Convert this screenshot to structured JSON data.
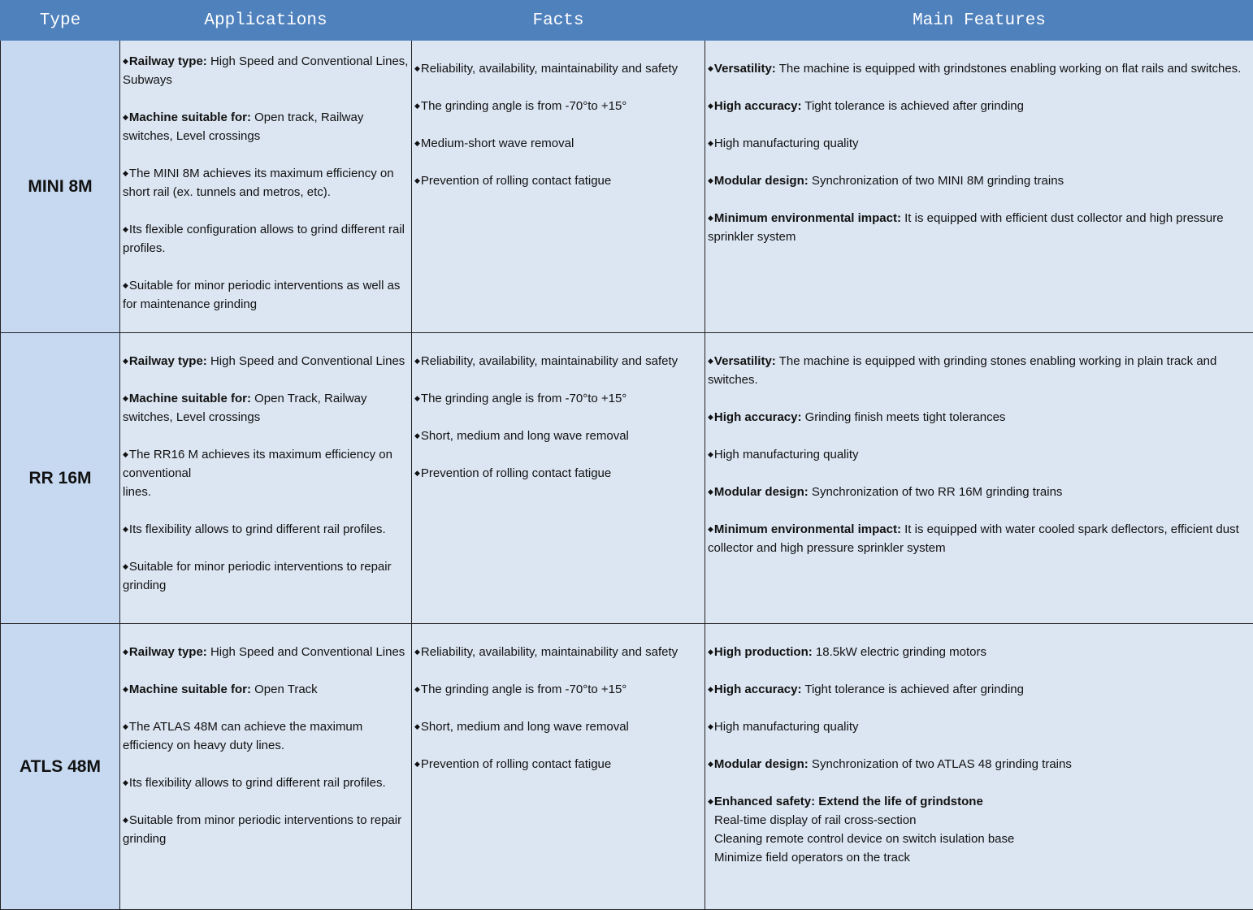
{
  "header": {
    "type": "Type",
    "applications": "Applications",
    "facts": "Facts",
    "features": "Main Features"
  },
  "colors": {
    "header": "#4F81BD",
    "type_column": "#C6D9F1",
    "cell": "#DCE6F2"
  },
  "bullet_icon": "diamond",
  "rows": [
    {
      "type": "MINI 8M",
      "applications": [
        {
          "bold": "Railway type:",
          "text": " High Speed and Conventional Lines, Subways"
        },
        {
          "bold": "Machine suitable for:",
          "text": " Open track,  Railway switches, Level crossings"
        },
        {
          "bold": "",
          "text": "The MINI 8M achieves its maximum efficiency on short rail (ex. tunnels and metros, etc)."
        },
        {
          "bold": "",
          "text": "Its flexible configuration allows to grind different rail profiles."
        },
        {
          "bold": "",
          "text": "Suitable for minor periodic  interventions as well as for maintenance grinding"
        }
      ],
      "facts": [
        {
          "bold": "",
          "text": "Reliability, availability, maintainability and safety"
        },
        {
          "bold": "",
          "text": "The grinding angle is from -70°to +15°"
        },
        {
          "bold": "",
          "text": "Medium-short wave removal"
        },
        {
          "bold": "",
          "text": "Prevention of rolling contact fatigue"
        }
      ],
      "features": [
        {
          "bold": "Versatility:",
          "text": " The machine is equipped with grindstones enabling working on flat rails and switches."
        },
        {
          "bold": "High accuracy:",
          "text": " Tight tolerance is achieved after grinding"
        },
        {
          "bold": "",
          "text": "High manufacturing quality"
        },
        {
          "bold": "Modular design:",
          "text": " Synchronization of two MINI 8M grinding trains"
        },
        {
          "bold": "Minimum environmental impact:",
          "text": " It is equipped with efficient dust collector and high pressure sprinkler system"
        }
      ]
    },
    {
      "type": "RR 16M",
      "applications": [
        {
          "bold": "Railway type:",
          "text": " High Speed and Conventional Lines"
        },
        {
          "bold": "Machine suitable for:",
          "text": " Open Track,  Railway switches, Level crossings"
        },
        {
          "bold": "",
          "text": "The RR16 M achieves its maximum efficiency on conventional\nlines."
        },
        {
          "bold": "",
          "text": "Its flexibility allows to grind different rail profiles."
        },
        {
          "bold": "",
          "text": "Suitable for minor periodic interventions to repair grinding"
        }
      ],
      "facts": [
        {
          "bold": "",
          "text": "Reliability, availability, maintainability and safety"
        },
        {
          "bold": "",
          "text": "The grinding angle is from -70°to +15°"
        },
        {
          "bold": "",
          "text": "Short, medium and long wave removal"
        },
        {
          "bold": "",
          "text": "Prevention of rolling contact fatigue"
        }
      ],
      "features": [
        {
          "bold": "Versatility:",
          "text": " The machine is equipped with grinding stones enabling working in plain track and switches."
        },
        {
          "bold": "High accuracy:",
          "text": " Grinding finish meets tight tolerances"
        },
        {
          "bold": "",
          "text": "High manufacturing quality"
        },
        {
          "bold": "Modular design:",
          "text": " Synchronization of two RR 16M grinding trains"
        },
        {
          "bold": "Minimum environmental impact:",
          "text": " It is equipped with water cooled spark deflectors, efficient dust collector and high pressure sprinkler system"
        }
      ]
    },
    {
      "type": "ATLS 48M",
      "applications": [
        {
          "bold": "Railway type:",
          "text": " High Speed and Conventional Lines"
        },
        {
          "bold": "Machine suitable for:",
          "text": " Open Track"
        },
        {
          "bold": "",
          "text": "The ATLAS 48M can achieve the maximum efficiency on heavy duty lines."
        },
        {
          "bold": "",
          "text": "Its flexibility allows to grind different rail profiles."
        },
        {
          "bold": "",
          "text": "Suitable from minor periodic interventions to repair grinding"
        }
      ],
      "facts": [
        {
          "bold": "",
          "text": "Reliability, availability, maintainability and safety"
        },
        {
          "bold": "",
          "text": "The grinding angle is from -70°to +15°"
        },
        {
          "bold": "",
          "text": "Short, medium and long wave removal"
        },
        {
          "bold": "",
          "text": "Prevention of rolling contact fatigue"
        }
      ],
      "features": [
        {
          "bold": "High production:",
          "text": " 18.5kW electric grinding motors"
        },
        {
          "bold": "High accuracy:",
          "text": " Tight tolerance is achieved after grinding"
        },
        {
          "bold": "",
          "text": "High manufacturing quality"
        },
        {
          "bold": "Modular design:",
          "text": " Synchronization of two ATLAS 48 grinding trains"
        },
        {
          "bold": "Enhanced safety: Extend the life of grindstone",
          "text": "",
          "sub": [
            "Real-time display of rail cross-section",
            "Cleaning remote control device on switch isulation base",
            "Minimize field operators on the track"
          ]
        }
      ]
    }
  ]
}
